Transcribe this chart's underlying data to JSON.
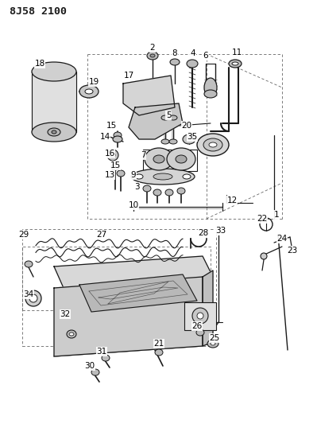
{
  "title": "8J58 2100",
  "bg_color": "#ffffff",
  "line_color": "#1a1a1a",
  "label_color": "#000000",
  "title_fontsize": 9.5,
  "label_fontsize": 7.5,
  "fig_width": 3.99,
  "fig_height": 5.33,
  "dpi": 100
}
